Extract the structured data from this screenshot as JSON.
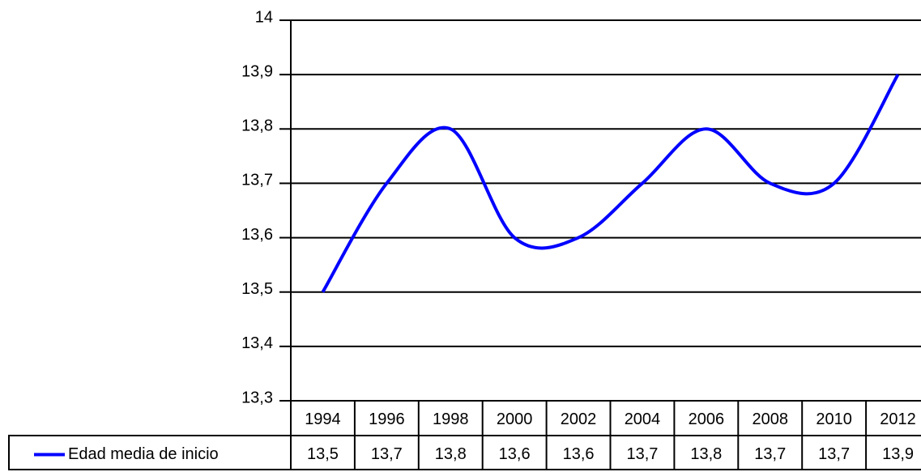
{
  "chart_data": {
    "type": "line",
    "categories": [
      "1994",
      "1996",
      "1998",
      "2000",
      "2002",
      "2004",
      "2006",
      "2008",
      "2010",
      "2012"
    ],
    "series": [
      {
        "name": "Edad media de inicio",
        "color": "#0000ff",
        "values": [
          13.5,
          13.7,
          13.8,
          13.6,
          13.6,
          13.7,
          13.8,
          13.7,
          13.7,
          13.9
        ],
        "value_labels": [
          "13,5",
          "13,7",
          "13,8",
          "13,6",
          "13,6",
          "13,7",
          "13,8",
          "13,7",
          "13,7",
          "13,9"
        ]
      }
    ],
    "ylim": [
      13.3,
      14
    ],
    "yticks": [
      {
        "value": 13.3,
        "label": "13,3"
      },
      {
        "value": 13.4,
        "label": "13,4"
      },
      {
        "value": 13.5,
        "label": "13,5"
      },
      {
        "value": 13.6,
        "label": "13,6"
      },
      {
        "value": 13.7,
        "label": "13,7"
      },
      {
        "value": 13.8,
        "label": "13,8"
      },
      {
        "value": 13.9,
        "label": "13,9"
      },
      14
    ],
    "grid": true,
    "smooth": true,
    "data_table": true
  }
}
